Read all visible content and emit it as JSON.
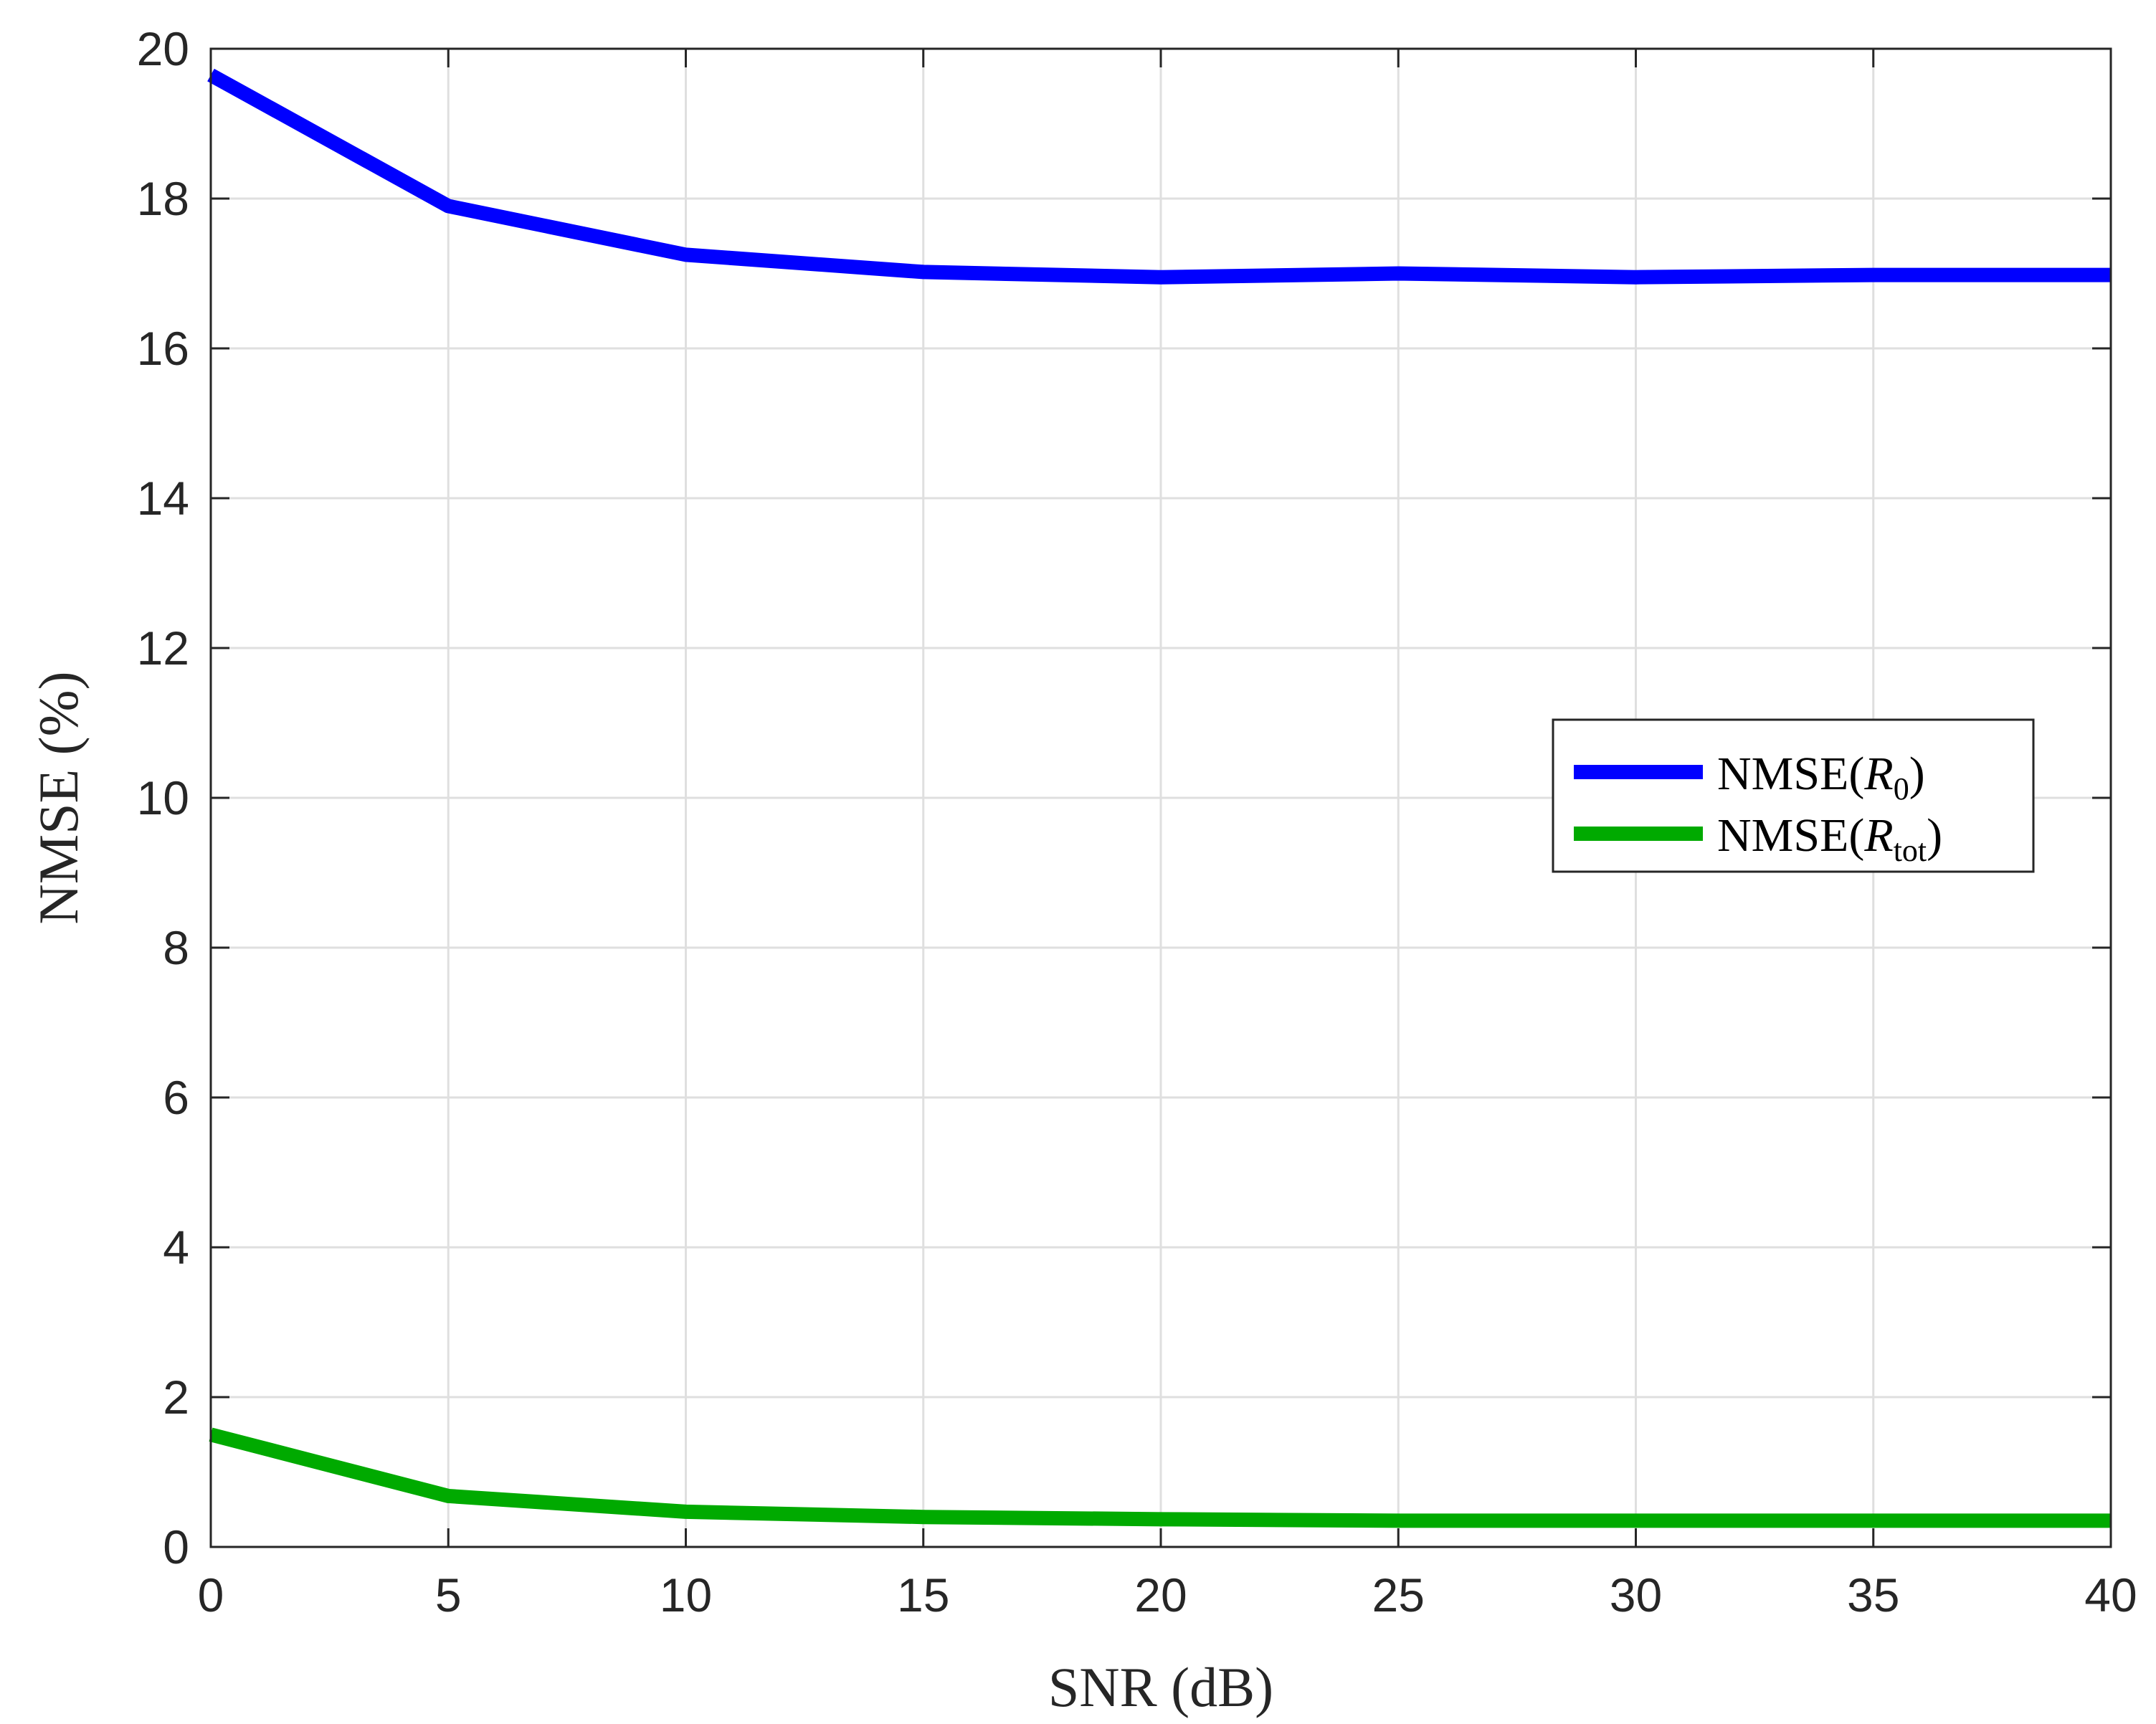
{
  "chart_data": {
    "type": "line",
    "xlabel": "SNR (dB)",
    "ylabel": "NMSE (%)",
    "xlim": [
      0,
      40
    ],
    "ylim": [
      0,
      20
    ],
    "xticks": [
      0,
      5,
      10,
      15,
      20,
      25,
      30,
      35,
      40
    ],
    "yticks": [
      0,
      2,
      4,
      6,
      8,
      10,
      12,
      14,
      16,
      18,
      20
    ],
    "grid": true,
    "legend_position": "right",
    "x": [
      0,
      5,
      10,
      15,
      20,
      25,
      30,
      35,
      40
    ],
    "series": [
      {
        "name": "NMSE(R0)",
        "legend": {
          "prefix": "NMSE(",
          "symbol": "R",
          "subscript": "0",
          "suffix": ")"
        },
        "color": "#0000ff",
        "values": [
          19.65,
          17.9,
          17.25,
          17.02,
          16.95,
          17.0,
          16.95,
          16.98,
          16.98
        ]
      },
      {
        "name": "NMSE(Rtot)",
        "legend": {
          "prefix": "NMSE(",
          "symbol": "R",
          "subscript": "tot",
          "suffix": ")"
        },
        "color": "#00aa00",
        "values": [
          1.5,
          0.68,
          0.47,
          0.4,
          0.37,
          0.35,
          0.35,
          0.35,
          0.35
        ]
      }
    ]
  }
}
